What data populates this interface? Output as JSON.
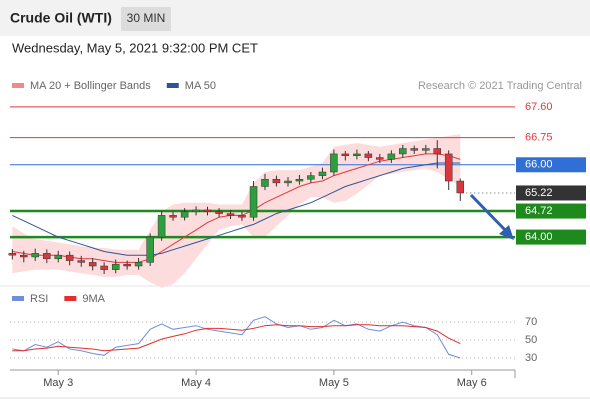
{
  "header": {
    "title": "Crude Oil (WTI)",
    "interval": "30 MIN",
    "timestamp": "Wednesday, May 5, 2021 9:32:00 PM CET"
  },
  "chart_data": [
    {
      "type": "candlestick",
      "annotation": "Research © 2021 Trading Central",
      "up_color": "#2e9e3e",
      "down_color": "#d9363e",
      "x": [
        2.667,
        2.75,
        2.833,
        2.917,
        3,
        3.083,
        3.167,
        3.25,
        3.333,
        3.417,
        3.5,
        3.583,
        3.667,
        3.75,
        3.833,
        3.917,
        4,
        4.083,
        4.167,
        4.25,
        4.333,
        4.417,
        4.5,
        4.583,
        4.667,
        4.75,
        4.833,
        4.917,
        5,
        5.083,
        5.167,
        5.25,
        5.333,
        5.417,
        5.5,
        5.583,
        5.667,
        5.75,
        5.833,
        5.917
      ],
      "open": [
        63.55,
        63.5,
        63.45,
        63.55,
        63.4,
        63.5,
        63.35,
        63.3,
        63.2,
        63.1,
        63.25,
        63.2,
        63.3,
        64.0,
        64.6,
        64.55,
        64.7,
        64.75,
        64.7,
        64.65,
        64.6,
        64.55,
        65.4,
        65.6,
        65.5,
        65.55,
        65.6,
        65.7,
        65.8,
        66.3,
        66.25,
        66.3,
        66.2,
        66.15,
        66.3,
        66.45,
        66.4,
        66.45,
        66.3,
        65.55
      ],
      "high": [
        63.67,
        63.62,
        63.68,
        63.66,
        63.62,
        63.6,
        63.48,
        63.42,
        63.3,
        63.38,
        63.35,
        63.42,
        64.1,
        64.72,
        64.7,
        64.8,
        64.85,
        64.84,
        64.8,
        64.74,
        64.7,
        65.55,
        65.75,
        65.7,
        65.66,
        65.72,
        65.8,
        65.92,
        66.42,
        66.38,
        66.42,
        66.38,
        66.3,
        66.4,
        66.55,
        66.53,
        66.55,
        66.68,
        66.4,
        65.62
      ],
      "low": [
        63.38,
        63.3,
        63.34,
        63.28,
        63.3,
        63.22,
        63.18,
        63.08,
        62.98,
        63.0,
        63.1,
        63.1,
        63.2,
        63.9,
        64.45,
        64.46,
        64.6,
        64.6,
        64.55,
        64.5,
        64.45,
        64.45,
        65.3,
        65.4,
        65.4,
        65.45,
        65.5,
        65.6,
        65.7,
        66.12,
        66.15,
        66.1,
        66.05,
        66.05,
        66.2,
        66.3,
        66.3,
        65.9,
        65.3,
        65.0
      ],
      "close": [
        63.5,
        63.45,
        63.55,
        63.4,
        63.5,
        63.35,
        63.3,
        63.2,
        63.1,
        63.25,
        63.2,
        63.3,
        64.0,
        64.6,
        64.55,
        64.7,
        64.75,
        64.7,
        64.65,
        64.6,
        64.55,
        65.4,
        65.6,
        65.5,
        65.55,
        65.6,
        65.7,
        65.8,
        66.3,
        66.25,
        66.3,
        66.2,
        66.15,
        66.3,
        66.45,
        66.4,
        66.45,
        66.3,
        65.55,
        65.22
      ],
      "series": [
        {
          "name": "MA 20 + Bollinger Bands",
          "color": "#f08a8a",
          "line_color": "#e0393e",
          "band_color": "#fcdcdc",
          "values": [
            63.6,
            63.55,
            63.5,
            63.5,
            63.5,
            63.45,
            63.4,
            63.4,
            63.35,
            63.3,
            63.3,
            63.3,
            63.4,
            63.6,
            63.8,
            64.0,
            64.2,
            64.4,
            64.55,
            64.6,
            64.6,
            64.75,
            64.95,
            65.1,
            65.25,
            65.4,
            65.5,
            65.55,
            65.7,
            65.8,
            65.9,
            66.0,
            66.1,
            66.15,
            66.2,
            66.25,
            66.3,
            66.3,
            66.25,
            66.15
          ],
          "upper": [
            64.3,
            64.1,
            63.95,
            63.9,
            63.85,
            63.8,
            63.75,
            63.7,
            63.7,
            63.65,
            63.65,
            63.65,
            64.2,
            64.7,
            64.9,
            64.95,
            64.95,
            64.95,
            64.9,
            64.9,
            64.9,
            65.5,
            65.8,
            65.85,
            65.85,
            65.85,
            65.95,
            66.05,
            66.5,
            66.55,
            66.6,
            66.55,
            66.5,
            66.55,
            66.6,
            66.65,
            66.7,
            66.75,
            66.8,
            66.85
          ],
          "lower": [
            63.0,
            63.05,
            63.1,
            63.1,
            63.1,
            63.05,
            63.0,
            62.95,
            62.9,
            62.9,
            62.95,
            62.95,
            62.75,
            62.6,
            62.7,
            63.0,
            63.4,
            63.8,
            64.2,
            64.3,
            64.35,
            64.0,
            64.0,
            64.3,
            64.6,
            64.9,
            65.1,
            65.1,
            64.95,
            65.0,
            65.2,
            65.45,
            65.7,
            65.75,
            65.8,
            65.85,
            65.9,
            65.8,
            65.6,
            65.4
          ]
        },
        {
          "name": "MA 50",
          "color": "#2f5597",
          "values": [
            64.6,
            64.45,
            64.3,
            64.15,
            64.0,
            63.9,
            63.8,
            63.7,
            63.6,
            63.55,
            63.5,
            63.5,
            63.5,
            63.55,
            63.65,
            63.75,
            63.85,
            63.95,
            64.05,
            64.15,
            64.25,
            64.35,
            64.5,
            64.65,
            64.75,
            64.85,
            64.95,
            65.1,
            65.25,
            65.4,
            65.5,
            65.6,
            65.7,
            65.8,
            65.9,
            65.95,
            66.0,
            66.05,
            66.05,
            66.05
          ]
        }
      ],
      "xlim": [
        2.65,
        6.314
      ],
      "ylim": [
        62.73,
        67.93
      ],
      "yticks": [
        {
          "value": 67.6,
          "label": "67.60",
          "color": "#e0393e",
          "box": false,
          "line": "thin"
        },
        {
          "value": 66.75,
          "label": "66.75",
          "color": "#e0393e",
          "box": false,
          "line": "thin"
        },
        {
          "value": 66.0,
          "label": "66.00",
          "color": "#2f6fd6",
          "box": true,
          "line": "thin"
        },
        {
          "value": 65.22,
          "label": "65.22",
          "color": "#333333",
          "box": true,
          "line": "dotted"
        },
        {
          "value": 64.72,
          "label": "64.72",
          "color": "#1e8a1e",
          "box": true,
          "line": "thick"
        },
        {
          "value": 64.0,
          "label": "64.00",
          "color": "#1e8a1e",
          "box": true,
          "line": "thick"
        }
      ]
    },
    {
      "type": "line",
      "x": [
        2.667,
        2.75,
        2.833,
        2.917,
        3,
        3.083,
        3.167,
        3.25,
        3.333,
        3.417,
        3.5,
        3.583,
        3.667,
        3.75,
        3.833,
        3.917,
        4,
        4.083,
        4.167,
        4.25,
        4.333,
        4.417,
        4.5,
        4.583,
        4.667,
        4.75,
        4.833,
        4.917,
        5,
        5.083,
        5.167,
        5.25,
        5.333,
        5.417,
        5.5,
        5.583,
        5.667,
        5.75,
        5.833,
        5.917
      ],
      "series": [
        {
          "name": "RSI",
          "color": "#6f8fdc",
          "values": [
            40,
            38,
            45,
            42,
            48,
            40,
            38,
            35,
            33,
            42,
            44,
            46,
            62,
            68,
            62,
            64,
            66,
            62,
            60,
            58,
            56,
            72,
            76,
            68,
            64,
            66,
            62,
            64,
            72,
            66,
            68,
            62,
            60,
            66,
            70,
            66,
            64,
            56,
            34,
            30
          ]
        },
        {
          "name": "9MA",
          "color": "#e0302f",
          "values": [
            38,
            38,
            40,
            41,
            43,
            42,
            41,
            40,
            38,
            39,
            40,
            41,
            46,
            51,
            54,
            57,
            61,
            63,
            63,
            62,
            61,
            63,
            66,
            67,
            66,
            66,
            65,
            65,
            66,
            66,
            67,
            67,
            66,
            66,
            66,
            65,
            64,
            60,
            52,
            46
          ]
        }
      ],
      "xlim": [
        2.65,
        6.314
      ],
      "ylim": [
        20,
        89
      ],
      "yticks": [
        70,
        50,
        30
      ],
      "xticks": [
        {
          "value": 3,
          "label": "May 3"
        },
        {
          "value": 4,
          "label": "May 4"
        },
        {
          "value": 5,
          "label": "May 5"
        },
        {
          "value": 6,
          "label": "May 6"
        }
      ]
    }
  ]
}
